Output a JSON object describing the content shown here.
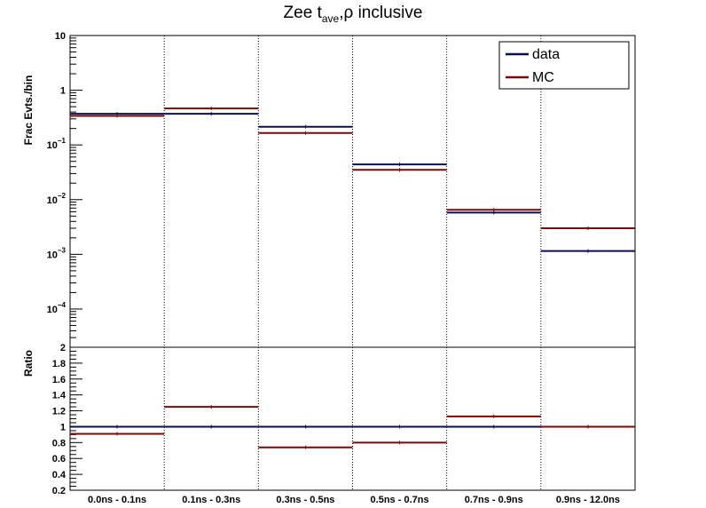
{
  "chart_data": [
    {
      "type": "step",
      "title": "Zee t",
      "title_sub": "ave",
      "title_rest": ",ρ inclusive",
      "ylabel": "Frac Evts./bin",
      "yscale": "log",
      "ylim": [
        2e-05,
        10
      ],
      "yticks": [
        {
          "v": 10,
          "m": "10",
          "e": ""
        },
        {
          "v": 1,
          "m": "1",
          "e": ""
        },
        {
          "v": 0.1,
          "m": "10",
          "e": "−1"
        },
        {
          "v": 0.01,
          "m": "10",
          "e": "−2"
        },
        {
          "v": 0.001,
          "m": "10",
          "e": "−3"
        },
        {
          "v": 0.0001,
          "m": "10",
          "e": "−4"
        }
      ],
      "categories": [
        "0.0ns - 0.1ns",
        "0.1ns - 0.3ns",
        "0.3ns - 0.5ns",
        "0.5ns - 0.7ns",
        "0.7ns - 0.9ns",
        "0.9ns - 12.0ns"
      ],
      "series": [
        {
          "name": "data",
          "color": "#0a0f52",
          "values": [
            0.37,
            0.37,
            0.215,
            0.044,
            0.0058,
            0.00115
          ]
        },
        {
          "name": "MC",
          "color": "#7a0a0a",
          "values": [
            0.34,
            0.465,
            0.165,
            0.035,
            0.0065,
            0.003
          ]
        }
      ],
      "legend": {
        "position": "top-right"
      },
      "grid": "vertical dotted lines at bin edges"
    },
    {
      "type": "step",
      "ylabel": "Ratio",
      "ylim": [
        0.2,
        2
      ],
      "yticks": [
        {
          "v": 0.2,
          "m": "0.2"
        },
        {
          "v": 0.4,
          "m": "0.4"
        },
        {
          "v": 0.6,
          "m": "0.6"
        },
        {
          "v": 0.8,
          "m": "0.8"
        },
        {
          "v": 1.0,
          "m": "1"
        },
        {
          "v": 1.2,
          "m": "1.2"
        },
        {
          "v": 1.4,
          "m": "1.4"
        },
        {
          "v": 1.6,
          "m": "1.6"
        },
        {
          "v": 1.8,
          "m": "1.8"
        },
        {
          "v": 2.0,
          "m": "2"
        }
      ],
      "categories": [
        "0.0ns - 0.1ns",
        "0.1ns - 0.3ns",
        "0.3ns - 0.5ns",
        "0.5ns - 0.7ns",
        "0.7ns - 0.9ns",
        "0.9ns - 12.0ns"
      ],
      "series": [
        {
          "name": "data",
          "color": "#0a0f52",
          "values": [
            1,
            1,
            1,
            1,
            1,
            1
          ]
        },
        {
          "name": "MC",
          "color": "#7a0a0a",
          "values": [
            0.91,
            1.25,
            0.74,
            0.8,
            1.13,
            1.0
          ]
        }
      ]
    }
  ]
}
